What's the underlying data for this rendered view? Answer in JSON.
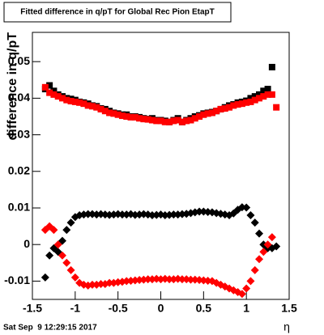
{
  "chart_data": {
    "type": "scatter",
    "title": "Fitted difference in q/pT for Global Rec Pion EtapT",
    "y_label": "difference in q/pT",
    "x_label": "η",
    "footer": "Sat Sep  9 12:29:15 2017",
    "xlim": [
      -1.5,
      1.5
    ],
    "ylim": [
      -0.015,
      0.058
    ],
    "xticks": [
      -1.5,
      -1,
      -0.5,
      0,
      0.5,
      1,
      1.5
    ],
    "yticks": [
      -0.01,
      0,
      0.01,
      0.02,
      0.03,
      0.04,
      0.05
    ],
    "x": [
      -1.35,
      -1.3,
      -1.25,
      -1.2,
      -1.15,
      -1.1,
      -1.05,
      -1,
      -0.95,
      -0.9,
      -0.85,
      -0.8,
      -0.75,
      -0.7,
      -0.65,
      -0.6,
      -0.55,
      -0.5,
      -0.45,
      -0.4,
      -0.35,
      -0.3,
      -0.25,
      -0.2,
      -0.15,
      -0.1,
      -0.05,
      0,
      0.05,
      0.1,
      0.15,
      0.2,
      0.25,
      0.3,
      0.35,
      0.4,
      0.45,
      0.5,
      0.55,
      0.6,
      0.65,
      0.7,
      0.75,
      0.8,
      0.85,
      0.9,
      0.95,
      1,
      1.05,
      1.1,
      1.15,
      1.2,
      1.25,
      1.3,
      1.35
    ],
    "series": [
      {
        "marker": "square",
        "color": "#000000",
        "values": [
          0.0425,
          0.0435,
          0.042,
          0.041,
          0.0405,
          0.04,
          0.0398,
          0.0395,
          0.039,
          0.0388,
          0.0385,
          0.038,
          0.0378,
          0.0372,
          0.037,
          0.0365,
          0.036,
          0.0358,
          0.0355,
          0.0355,
          0.035,
          0.035,
          0.0348,
          0.0345,
          0.0343,
          0.0345,
          0.034,
          0.034,
          0.0338,
          0.0335,
          0.034,
          0.0345,
          0.0335,
          0.034,
          0.0345,
          0.035,
          0.0353,
          0.0358,
          0.036,
          0.0362,
          0.0365,
          0.037,
          0.0375,
          0.038,
          0.0383,
          0.0388,
          0.039,
          0.0393,
          0.04,
          0.0405,
          0.041,
          0.042,
          0.0425,
          0.0485,
          null
        ]
      },
      {
        "marker": "square",
        "color": "#ff0000",
        "values": [
          0.043,
          0.0415,
          0.041,
          0.0405,
          0.04,
          0.0395,
          0.0392,
          0.039,
          0.0388,
          0.0385,
          0.038,
          0.0378,
          0.0375,
          0.037,
          0.0365,
          0.036,
          0.0358,
          0.0355,
          0.0352,
          0.035,
          0.0348,
          0.0348,
          0.0345,
          0.0343,
          0.0342,
          0.034,
          0.0338,
          0.0338,
          0.0335,
          0.0335,
          0.0338,
          0.034,
          0.0335,
          0.0338,
          0.034,
          0.0345,
          0.035,
          0.0355,
          0.0358,
          0.036,
          0.0365,
          0.037,
          0.0372,
          0.0375,
          0.038,
          0.0383,
          0.0385,
          0.0388,
          0.039,
          0.0395,
          0.04,
          0.0405,
          0.041,
          0.041,
          0.0375
        ]
      },
      {
        "marker": "diamond",
        "color": "#000000",
        "values": [
          -0.009,
          -0.003,
          -0.001,
          -0.002,
          0.001,
          0.004,
          0.006,
          0.0075,
          0.008,
          0.0082,
          0.0083,
          0.0083,
          0.0082,
          0.0083,
          0.0082,
          0.0081,
          0.0082,
          0.0083,
          0.0082,
          0.0082,
          0.0083,
          0.0081,
          0.0082,
          0.0083,
          0.0082,
          0.008,
          0.0081,
          0.0082,
          0.008,
          0.0081,
          0.0082,
          0.0082,
          0.0083,
          0.0084,
          0.0086,
          0.0088,
          0.009,
          0.009,
          0.0089,
          0.0088,
          0.0086,
          0.0084,
          0.0082,
          0.008,
          0.0085,
          0.0095,
          0.0102,
          0.0101,
          0.008,
          0.006,
          0.003,
          0,
          -0.001,
          -0.001,
          -0.0005
        ]
      },
      {
        "marker": "diamond",
        "color": "#ff0000",
        "values": [
          0.004,
          0.005,
          0.004,
          0,
          -0.003,
          -0.005,
          -0.007,
          -0.009,
          -0.0105,
          -0.011,
          -0.0112,
          -0.011,
          -0.011,
          -0.0108,
          -0.0108,
          -0.0105,
          -0.0105,
          -0.0103,
          -0.0102,
          -0.01,
          -0.0099,
          -0.0098,
          -0.0097,
          -0.0096,
          -0.0095,
          -0.0095,
          -0.0094,
          -0.0095,
          -0.0094,
          -0.0095,
          -0.0095,
          -0.0094,
          -0.0095,
          -0.0095,
          -0.0096,
          -0.0096,
          -0.0097,
          -0.0098,
          -0.0099,
          -0.01,
          -0.0105,
          -0.011,
          -0.0115,
          -0.012,
          -0.0125,
          -0.013,
          -0.0135,
          -0.012,
          -0.01,
          -0.007,
          -0.004,
          -0.002,
          0,
          0.002,
          null
        ]
      }
    ]
  }
}
